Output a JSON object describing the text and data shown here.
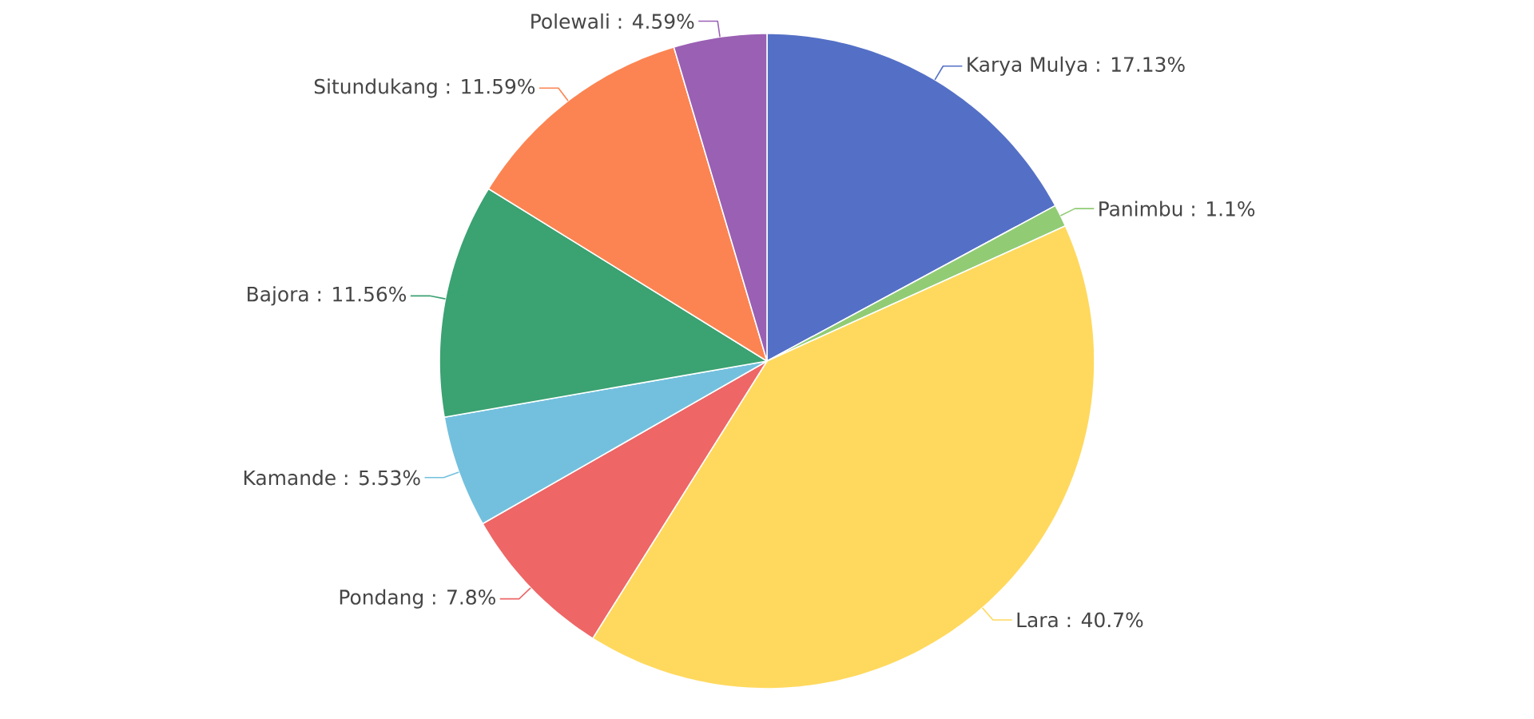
{
  "chart_data": {
    "type": "pie",
    "categories": [
      "Karya Mulya",
      "Panimbu",
      "Lara",
      "Pondang",
      "Kamande",
      "Bajora",
      "Situndukang",
      "Polewali"
    ],
    "values": [
      17.13,
      1.1,
      40.7,
      7.8,
      5.53,
      11.56,
      11.59,
      4.59
    ],
    "colors": [
      "#5470c6",
      "#91cc75",
      "#ffd95e",
      "#ee6666",
      "#73c0de",
      "#3ba272",
      "#fc8452",
      "#9a60b4"
    ],
    "value_labels": [
      ": 17.13%",
      ": 1.1%",
      ": 40.7%",
      ": 7.8%",
      ": 5.53%",
      ": 11.56%",
      ": 11.59%",
      ": 4.59%"
    ]
  }
}
